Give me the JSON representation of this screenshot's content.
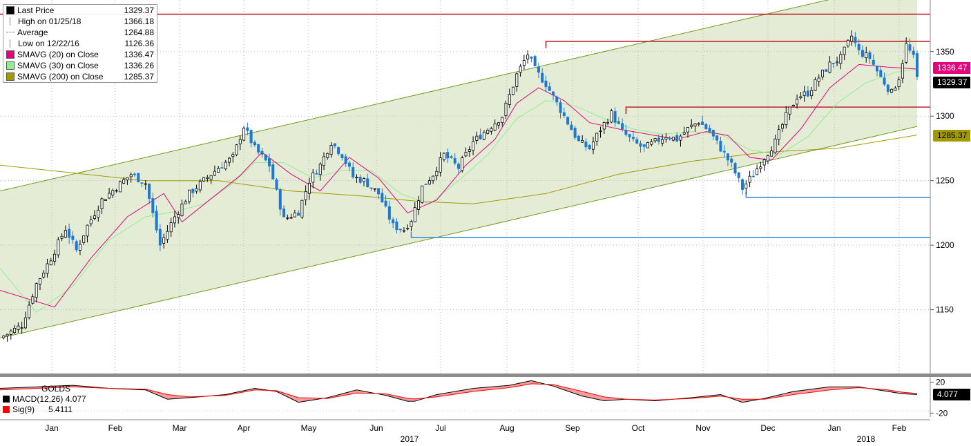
{
  "legend": {
    "rows": [
      {
        "label": "Last Price",
        "value": "1329.37",
        "icon": "black-square",
        "color": "#000000"
      },
      {
        "label": "High on 01/25/18",
        "value": "1366.18",
        "icon": "high-marker",
        "color": "#888888"
      },
      {
        "label": "Average",
        "value": "1264.88",
        "icon": "average-marker",
        "color": "#888888"
      },
      {
        "label": "Low on 12/22/16",
        "value": "1126.36",
        "icon": "low-marker",
        "color": "#888888"
      },
      {
        "label": "SMAVG (20) on Close",
        "value": "1336.47",
        "icon": "magenta-square",
        "color": "#e6007e"
      },
      {
        "label": "SMAVG (30) on Close",
        "value": "1336.26",
        "icon": "green-square",
        "color": "#90ee90"
      },
      {
        "label": "SMAVG (200) on Close",
        "value": "1285.37",
        "icon": "olive-square",
        "color": "#a09a00"
      }
    ]
  },
  "macd_legend": {
    "title": "GOLDS",
    "rows": [
      {
        "label": "MACD(12,26)",
        "value": "4.077",
        "color": "#000000"
      },
      {
        "label": "Sig(9)",
        "value": "5.4111",
        "color": "#ff0000"
      }
    ]
  },
  "price_tags": [
    {
      "text": "1336.47",
      "value": 1336.47,
      "bg": "#e6007e",
      "fg": "#ffffff"
    },
    {
      "text": "1329.37",
      "value": 1329.37,
      "bg": "#000000",
      "fg": "#ffffff"
    },
    {
      "text": "1285.37",
      "value": 1285.37,
      "bg": "#a09a00",
      "fg": "#000000"
    }
  ],
  "macd_tag": {
    "text": "4.077",
    "bg": "#000000",
    "fg": "#ffffff"
  },
  "colors": {
    "channel_fill": "#e4ecd6",
    "channel_line": "#6f9a1f",
    "resistance": "#c0202a",
    "support": "#3d8fdc",
    "up_candle": "#000000",
    "down_candle": "#1e78d2",
    "sma20": "#e6007e",
    "sma30": "#90ee90",
    "sma200": "#a09a00"
  },
  "chart_data": [
    {
      "type": "candlestick",
      "instrument": "GOLDS",
      "x": [
        "Jan",
        "Feb",
        "Mar",
        "Apr",
        "May",
        "Jun",
        "Jul",
        "Aug",
        "Sep",
        "Oct",
        "Nov",
        "Dec",
        "Jan",
        "Feb"
      ],
      "x_year_labels": [
        "2017",
        "2018"
      ],
      "y_ticks": [
        1150,
        1200,
        1250,
        1300,
        1350
      ],
      "ylim": [
        1100,
        1390
      ],
      "grid": true,
      "close_path": [
        [
          0,
          1128
        ],
        [
          6,
          1138
        ],
        [
          10,
          1170
        ],
        [
          14,
          1190
        ],
        [
          18,
          1213
        ],
        [
          21,
          1196
        ],
        [
          24,
          1215
        ],
        [
          28,
          1235
        ],
        [
          32,
          1245
        ],
        [
          36,
          1255
        ],
        [
          40,
          1248
        ],
        [
          44,
          1200
        ],
        [
          48,
          1222
        ],
        [
          52,
          1240
        ],
        [
          56,
          1250
        ],
        [
          60,
          1260
        ],
        [
          64,
          1268
        ],
        [
          67,
          1292
        ],
        [
          70,
          1275
        ],
        [
          74,
          1262
        ],
        [
          78,
          1220
        ],
        [
          82,
          1226
        ],
        [
          85,
          1250
        ],
        [
          88,
          1262
        ],
        [
          91,
          1280
        ],
        [
          94,
          1270
        ],
        [
          97,
          1253
        ],
        [
          100,
          1250
        ],
        [
          104,
          1240
        ],
        [
          108,
          1215
        ],
        [
          111,
          1212
        ],
        [
          113,
          1220
        ],
        [
          116,
          1245
        ],
        [
          119,
          1255
        ],
        [
          122,
          1270
        ],
        [
          126,
          1260
        ],
        [
          130,
          1280
        ],
        [
          134,
          1290
        ],
        [
          138,
          1300
        ],
        [
          142,
          1332
        ],
        [
          145,
          1348
        ],
        [
          147,
          1336
        ],
        [
          150,
          1325
        ],
        [
          153,
          1310
        ],
        [
          156,
          1295
        ],
        [
          159,
          1280
        ],
        [
          162,
          1275
        ],
        [
          165,
          1290
        ],
        [
          168,
          1302
        ],
        [
          171,
          1288
        ],
        [
          174,
          1280
        ],
        [
          177,
          1275
        ],
        [
          180,
          1280
        ],
        [
          183,
          1285
        ],
        [
          186,
          1282
        ],
        [
          189,
          1290
        ],
        [
          192,
          1296
        ],
        [
          195,
          1288
        ],
        [
          198,
          1275
        ],
        [
          201,
          1262
        ],
        [
          204,
          1244
        ],
        [
          207,
          1255
        ],
        [
          210,
          1268
        ],
        [
          213,
          1280
        ],
        [
          216,
          1300
        ],
        [
          219,
          1315
        ],
        [
          222,
          1318
        ],
        [
          225,
          1330
        ],
        [
          228,
          1340
        ],
        [
          231,
          1345
        ],
        [
          234,
          1362
        ],
        [
          236,
          1350
        ],
        [
          239,
          1345
        ],
        [
          242,
          1330
        ],
        [
          245,
          1318
        ],
        [
          247,
          1330
        ],
        [
          249,
          1355
        ],
        [
          251,
          1345
        ],
        [
          252,
          1329.37
        ]
      ],
      "sma20_path": [
        [
          0,
          1165
        ],
        [
          15,
          1152
        ],
        [
          25,
          1190
        ],
        [
          35,
          1222
        ],
        [
          45,
          1240
        ],
        [
          50,
          1218
        ],
        [
          58,
          1236
        ],
        [
          66,
          1254
        ],
        [
          72,
          1272
        ],
        [
          80,
          1255
        ],
        [
          88,
          1242
        ],
        [
          96,
          1268
        ],
        [
          104,
          1252
        ],
        [
          112,
          1225
        ],
        [
          120,
          1235
        ],
        [
          128,
          1262
        ],
        [
          136,
          1282
        ],
        [
          142,
          1310
        ],
        [
          148,
          1322
        ],
        [
          155,
          1312
        ],
        [
          162,
          1295
        ],
        [
          170,
          1290
        ],
        [
          178,
          1286
        ],
        [
          186,
          1282
        ],
        [
          194,
          1288
        ],
        [
          200,
          1285
        ],
        [
          206,
          1268
        ],
        [
          212,
          1266
        ],
        [
          220,
          1290
        ],
        [
          228,
          1322
        ],
        [
          236,
          1340
        ],
        [
          244,
          1338
        ],
        [
          252,
          1336.47
        ]
      ],
      "sma30_path": [
        [
          0,
          1182
        ],
        [
          10,
          1148
        ],
        [
          20,
          1168
        ],
        [
          30,
          1204
        ],
        [
          40,
          1222
        ],
        [
          48,
          1226
        ],
        [
          56,
          1232
        ],
        [
          64,
          1248
        ],
        [
          70,
          1264
        ],
        [
          78,
          1264
        ],
        [
          86,
          1252
        ],
        [
          94,
          1258
        ],
        [
          102,
          1258
        ],
        [
          110,
          1240
        ],
        [
          118,
          1232
        ],
        [
          126,
          1250
        ],
        [
          134,
          1270
        ],
        [
          142,
          1298
        ],
        [
          150,
          1312
        ],
        [
          158,
          1308
        ],
        [
          166,
          1298
        ],
        [
          174,
          1290
        ],
        [
          182,
          1286
        ],
        [
          190,
          1288
        ],
        [
          198,
          1286
        ],
        [
          206,
          1274
        ],
        [
          214,
          1270
        ],
        [
          222,
          1284
        ],
        [
          230,
          1310
        ],
        [
          238,
          1326
        ],
        [
          246,
          1334
        ],
        [
          252,
          1336.26
        ]
      ],
      "sma200_path": [
        [
          0,
          1262
        ],
        [
          20,
          1256
        ],
        [
          40,
          1250
        ],
        [
          60,
          1250
        ],
        [
          80,
          1242
        ],
        [
          100,
          1238
        ],
        [
          115,
          1234
        ],
        [
          130,
          1232
        ],
        [
          150,
          1240
        ],
        [
          170,
          1255
        ],
        [
          190,
          1265
        ],
        [
          210,
          1272
        ],
        [
          230,
          1275
        ],
        [
          252,
          1285.37
        ]
      ],
      "channel": {
        "upper": [
          [
            0,
            1242
          ],
          [
            252,
            1406
          ]
        ],
        "lower": [
          [
            0,
            1128
          ],
          [
            252,
            1292
          ]
        ]
      },
      "resistance_lines": [
        {
          "from": 0,
          "value": 1379
        },
        {
          "from": 150,
          "value": 1358
        },
        {
          "from": 172,
          "value": 1307
        }
      ],
      "support_lines": [
        {
          "from": 113,
          "value": 1206
        },
        {
          "from": 205,
          "value": 1237
        }
      ]
    },
    {
      "type": "line",
      "title": "GOLDS",
      "series": [
        {
          "name": "MACD(12,26)",
          "last": 4.077
        },
        {
          "name": "Sig(9)",
          "last": 5.4111
        }
      ],
      "y_ticks": [
        20,
        -20
      ],
      "ylim": [
        -25,
        25
      ],
      "macd_path": [
        [
          0,
          12
        ],
        [
          10,
          14
        ],
        [
          20,
          16
        ],
        [
          30,
          12
        ],
        [
          40,
          10
        ],
        [
          46,
          -2
        ],
        [
          52,
          0
        ],
        [
          62,
          4
        ],
        [
          70,
          12
        ],
        [
          76,
          8
        ],
        [
          82,
          -6
        ],
        [
          90,
          0
        ],
        [
          98,
          10
        ],
        [
          106,
          3
        ],
        [
          113,
          -6
        ],
        [
          120,
          4
        ],
        [
          130,
          12
        ],
        [
          140,
          16
        ],
        [
          146,
          22
        ],
        [
          152,
          15
        ],
        [
          160,
          2
        ],
        [
          166,
          -4
        ],
        [
          172,
          -2
        ],
        [
          180,
          -4
        ],
        [
          190,
          0
        ],
        [
          198,
          4
        ],
        [
          204,
          -6
        ],
        [
          210,
          -1
        ],
        [
          218,
          8
        ],
        [
          228,
          14
        ],
        [
          236,
          14
        ],
        [
          244,
          8
        ],
        [
          248,
          5
        ],
        [
          252,
          4.077
        ]
      ],
      "signal_path": [
        [
          0,
          10
        ],
        [
          10,
          12
        ],
        [
          20,
          14
        ],
        [
          30,
          12
        ],
        [
          40,
          11
        ],
        [
          46,
          4
        ],
        [
          52,
          1
        ],
        [
          62,
          3
        ],
        [
          70,
          10
        ],
        [
          76,
          9
        ],
        [
          82,
          0
        ],
        [
          90,
          -1
        ],
        [
          98,
          6
        ],
        [
          106,
          5
        ],
        [
          113,
          -2
        ],
        [
          120,
          1
        ],
        [
          130,
          8
        ],
        [
          140,
          13
        ],
        [
          146,
          18
        ],
        [
          152,
          17
        ],
        [
          160,
          8
        ],
        [
          166,
          1
        ],
        [
          172,
          -2
        ],
        [
          180,
          -3
        ],
        [
          190,
          -1
        ],
        [
          198,
          2
        ],
        [
          204,
          -2
        ],
        [
          210,
          -2
        ],
        [
          218,
          4
        ],
        [
          228,
          10
        ],
        [
          236,
          13
        ],
        [
          244,
          10
        ],
        [
          248,
          7
        ],
        [
          252,
          5.4111
        ]
      ]
    }
  ]
}
